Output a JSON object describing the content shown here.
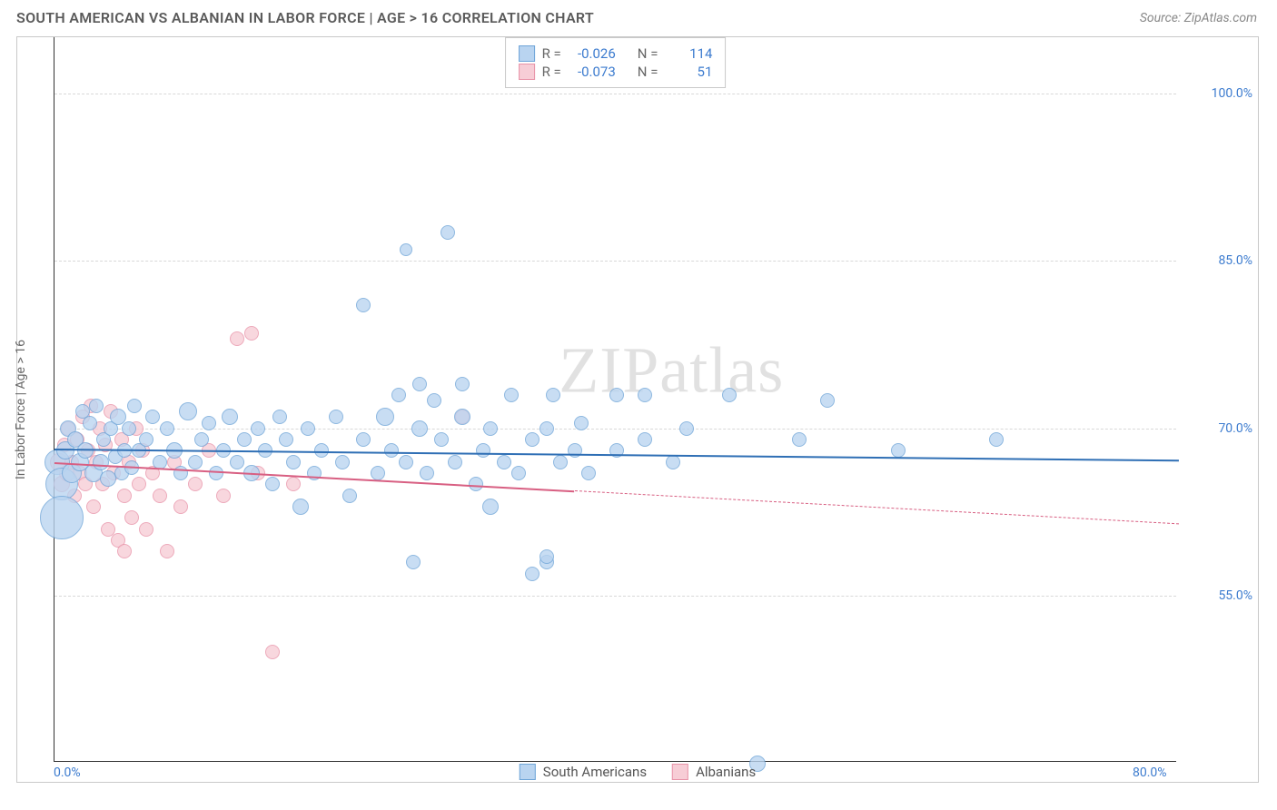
{
  "header": {
    "title": "SOUTH AMERICAN VS ALBANIAN IN LABOR FORCE | AGE > 16 CORRELATION CHART",
    "source": "Source: ZipAtlas.com"
  },
  "watermark": "ZIPatlas",
  "chart": {
    "type": "scatter",
    "ylabel": "In Labor Force | Age > 16",
    "background_color": "#ffffff",
    "grid_color": "#d8d8d8",
    "axis_color": "#333333",
    "tick_color": "#3d7ccf",
    "label_color": "#666666",
    "xlim": [
      0,
      80
    ],
    "ylim": [
      40,
      105
    ],
    "x_ticks": [
      {
        "v": 0,
        "label": "0.0%"
      },
      {
        "v": 80,
        "label": "80.0%"
      }
    ],
    "y_ticks": [
      {
        "v": 55,
        "label": "55.0%"
      },
      {
        "v": 70,
        "label": "70.0%"
      },
      {
        "v": 85,
        "label": "85.0%"
      },
      {
        "v": 100,
        "label": "100.0%"
      }
    ],
    "bubble_border_width": 1,
    "stats_box": {
      "border_color": "#c9c9c9",
      "rows": [
        {
          "r_label": "R =",
          "r_val": "-0.026",
          "n_label": "N =",
          "n_val": "114",
          "series": "blue"
        },
        {
          "r_label": "R =",
          "r_val": "-0.073",
          "n_label": "N =",
          "n_val": "51",
          "series": "pink"
        }
      ]
    },
    "series": {
      "blue": {
        "label": "South Americans",
        "fill": "#b9d4f0",
        "stroke": "#6fa5d8",
        "trend_color": "#2f6fb5",
        "trend": {
          "y_at_x0": 68.2,
          "y_at_x80": 67.2,
          "solid_until_x": 80
        },
        "points": [
          {
            "x": 0.2,
            "y": 67,
            "r": 14
          },
          {
            "x": 0.5,
            "y": 65,
            "r": 18
          },
          {
            "x": 0.5,
            "y": 62,
            "r": 24
          },
          {
            "x": 0.8,
            "y": 68,
            "r": 10
          },
          {
            "x": 1.0,
            "y": 70,
            "r": 9
          },
          {
            "x": 1.2,
            "y": 66,
            "r": 11
          },
          {
            "x": 1.5,
            "y": 69,
            "r": 9
          },
          {
            "x": 1.8,
            "y": 67,
            "r": 10
          },
          {
            "x": 2.0,
            "y": 71.5,
            "r": 8
          },
          {
            "x": 2.2,
            "y": 68,
            "r": 9
          },
          {
            "x": 2.5,
            "y": 70.5,
            "r": 8
          },
          {
            "x": 2.8,
            "y": 66,
            "r": 10
          },
          {
            "x": 3.0,
            "y": 72,
            "r": 8
          },
          {
            "x": 3.3,
            "y": 67,
            "r": 9
          },
          {
            "x": 3.5,
            "y": 69,
            "r": 8
          },
          {
            "x": 3.8,
            "y": 65.5,
            "r": 9
          },
          {
            "x": 4.0,
            "y": 70,
            "r": 8
          },
          {
            "x": 4.3,
            "y": 67.5,
            "r": 8
          },
          {
            "x": 4.5,
            "y": 71,
            "r": 9
          },
          {
            "x": 4.8,
            "y": 66,
            "r": 8
          },
          {
            "x": 5.0,
            "y": 68,
            "r": 8
          },
          {
            "x": 5.3,
            "y": 70,
            "r": 8
          },
          {
            "x": 5.5,
            "y": 66.5,
            "r": 8
          },
          {
            "x": 5.7,
            "y": 72,
            "r": 8
          },
          {
            "x": 6.0,
            "y": 68,
            "r": 8
          },
          {
            "x": 6.5,
            "y": 69,
            "r": 8
          },
          {
            "x": 7.0,
            "y": 71,
            "r": 8
          },
          {
            "x": 7.5,
            "y": 67,
            "r": 8
          },
          {
            "x": 8.0,
            "y": 70,
            "r": 8
          },
          {
            "x": 8.5,
            "y": 68,
            "r": 9
          },
          {
            "x": 9.0,
            "y": 66,
            "r": 8
          },
          {
            "x": 9.5,
            "y": 71.5,
            "r": 10
          },
          {
            "x": 10,
            "y": 67,
            "r": 8
          },
          {
            "x": 10.5,
            "y": 69,
            "r": 8
          },
          {
            "x": 11,
            "y": 70.5,
            "r": 8
          },
          {
            "x": 11.5,
            "y": 66,
            "r": 8
          },
          {
            "x": 12,
            "y": 68,
            "r": 8
          },
          {
            "x": 12.5,
            "y": 71,
            "r": 9
          },
          {
            "x": 13,
            "y": 67,
            "r": 8
          },
          {
            "x": 13.5,
            "y": 69,
            "r": 8
          },
          {
            "x": 14,
            "y": 66,
            "r": 9
          },
          {
            "x": 14.5,
            "y": 70,
            "r": 8
          },
          {
            "x": 15,
            "y": 68,
            "r": 8
          },
          {
            "x": 15.5,
            "y": 65,
            "r": 8
          },
          {
            "x": 16,
            "y": 71,
            "r": 8
          },
          {
            "x": 16.5,
            "y": 69,
            "r": 8
          },
          {
            "x": 17,
            "y": 67,
            "r": 8
          },
          {
            "x": 17.5,
            "y": 63,
            "r": 9
          },
          {
            "x": 18,
            "y": 70,
            "r": 8
          },
          {
            "x": 18.5,
            "y": 66,
            "r": 8
          },
          {
            "x": 19,
            "y": 68,
            "r": 8
          },
          {
            "x": 20,
            "y": 71,
            "r": 8
          },
          {
            "x": 20.5,
            "y": 67,
            "r": 8
          },
          {
            "x": 21,
            "y": 64,
            "r": 8
          },
          {
            "x": 22,
            "y": 69,
            "r": 8
          },
          {
            "x": 22,
            "y": 81,
            "r": 8
          },
          {
            "x": 23,
            "y": 66,
            "r": 8
          },
          {
            "x": 23.5,
            "y": 71,
            "r": 10
          },
          {
            "x": 24,
            "y": 68,
            "r": 8
          },
          {
            "x": 24.5,
            "y": 73,
            "r": 8
          },
          {
            "x": 25,
            "y": 86,
            "r": 7
          },
          {
            "x": 25,
            "y": 67,
            "r": 8
          },
          {
            "x": 25.5,
            "y": 58,
            "r": 8
          },
          {
            "x": 26,
            "y": 70,
            "r": 9
          },
          {
            "x": 26,
            "y": 74,
            "r": 8
          },
          {
            "x": 26.5,
            "y": 66,
            "r": 8
          },
          {
            "x": 27,
            "y": 72.5,
            "r": 8
          },
          {
            "x": 27.5,
            "y": 69,
            "r": 8
          },
          {
            "x": 28,
            "y": 87.5,
            "r": 8
          },
          {
            "x": 28.5,
            "y": 67,
            "r": 8
          },
          {
            "x": 29,
            "y": 71,
            "r": 9
          },
          {
            "x": 29,
            "y": 74,
            "r": 8
          },
          {
            "x": 30,
            "y": 65,
            "r": 8
          },
          {
            "x": 30.5,
            "y": 68,
            "r": 8
          },
          {
            "x": 31,
            "y": 70,
            "r": 8
          },
          {
            "x": 31,
            "y": 63,
            "r": 9
          },
          {
            "x": 32,
            "y": 67,
            "r": 8
          },
          {
            "x": 32.5,
            "y": 73,
            "r": 8
          },
          {
            "x": 33,
            "y": 66,
            "r": 8
          },
          {
            "x": 34,
            "y": 69,
            "r": 8
          },
          {
            "x": 34,
            "y": 57,
            "r": 8
          },
          {
            "x": 35,
            "y": 58,
            "r": 8
          },
          {
            "x": 35,
            "y": 70,
            "r": 8
          },
          {
            "x": 35,
            "y": 58.5,
            "r": 8
          },
          {
            "x": 35.5,
            "y": 73,
            "r": 8
          },
          {
            "x": 36,
            "y": 67,
            "r": 8
          },
          {
            "x": 37,
            "y": 68,
            "r": 8
          },
          {
            "x": 37.5,
            "y": 70.5,
            "r": 8
          },
          {
            "x": 38,
            "y": 66,
            "r": 8
          },
          {
            "x": 40,
            "y": 68,
            "r": 8
          },
          {
            "x": 40,
            "y": 73,
            "r": 8
          },
          {
            "x": 42,
            "y": 69,
            "r": 8
          },
          {
            "x": 42,
            "y": 73,
            "r": 8
          },
          {
            "x": 44,
            "y": 67,
            "r": 8
          },
          {
            "x": 45,
            "y": 70,
            "r": 8
          },
          {
            "x": 48,
            "y": 73,
            "r": 8
          },
          {
            "x": 50,
            "y": 40,
            "r": 9
          },
          {
            "x": 53,
            "y": 69,
            "r": 8
          },
          {
            "x": 55,
            "y": 72.5,
            "r": 8
          },
          {
            "x": 60,
            "y": 68,
            "r": 8
          },
          {
            "x": 67,
            "y": 69,
            "r": 8
          }
        ]
      },
      "pink": {
        "label": "Albanians",
        "fill": "#f7cdd6",
        "stroke": "#e893a8",
        "trend_color": "#d85f82",
        "trend": {
          "y_at_x0": 67.0,
          "y_at_x80": 61.5,
          "solid_until_x": 37
        },
        "points": [
          {
            "x": 0.3,
            "y": 67,
            "r": 10
          },
          {
            "x": 0.5,
            "y": 65,
            "r": 9
          },
          {
            "x": 0.7,
            "y": 68.5,
            "r": 8
          },
          {
            "x": 0.9,
            "y": 66,
            "r": 9
          },
          {
            "x": 1.0,
            "y": 70,
            "r": 8
          },
          {
            "x": 1.2,
            "y": 67,
            "r": 8
          },
          {
            "x": 1.4,
            "y": 64,
            "r": 8
          },
          {
            "x": 1.6,
            "y": 69,
            "r": 8
          },
          {
            "x": 1.8,
            "y": 66,
            "r": 8
          },
          {
            "x": 2.0,
            "y": 71,
            "r": 8
          },
          {
            "x": 2.2,
            "y": 65,
            "r": 8
          },
          {
            "x": 2.4,
            "y": 68,
            "r": 8
          },
          {
            "x": 2.6,
            "y": 72,
            "r": 8
          },
          {
            "x": 2.8,
            "y": 63,
            "r": 8
          },
          {
            "x": 3.0,
            "y": 67,
            "r": 8
          },
          {
            "x": 3.2,
            "y": 70,
            "r": 8
          },
          {
            "x": 3.4,
            "y": 65,
            "r": 8
          },
          {
            "x": 3.6,
            "y": 68.5,
            "r": 8
          },
          {
            "x": 3.8,
            "y": 61,
            "r": 8
          },
          {
            "x": 4.0,
            "y": 71.5,
            "r": 8
          },
          {
            "x": 4.2,
            "y": 66,
            "r": 8
          },
          {
            "x": 4.5,
            "y": 60,
            "r": 8
          },
          {
            "x": 4.8,
            "y": 69,
            "r": 8
          },
          {
            "x": 5.0,
            "y": 64,
            "r": 8
          },
          {
            "x": 5.0,
            "y": 59,
            "r": 8
          },
          {
            "x": 5.3,
            "y": 67,
            "r": 8
          },
          {
            "x": 5.5,
            "y": 62,
            "r": 8
          },
          {
            "x": 5.8,
            "y": 70,
            "r": 8
          },
          {
            "x": 6.0,
            "y": 65,
            "r": 8
          },
          {
            "x": 6.3,
            "y": 68,
            "r": 8
          },
          {
            "x": 6.5,
            "y": 61,
            "r": 8
          },
          {
            "x": 7.0,
            "y": 66,
            "r": 8
          },
          {
            "x": 7.5,
            "y": 64,
            "r": 8
          },
          {
            "x": 8.0,
            "y": 59,
            "r": 8
          },
          {
            "x": 8.5,
            "y": 67,
            "r": 8
          },
          {
            "x": 9.0,
            "y": 63,
            "r": 8
          },
          {
            "x": 10,
            "y": 65,
            "r": 8
          },
          {
            "x": 11,
            "y": 68,
            "r": 8
          },
          {
            "x": 12,
            "y": 64,
            "r": 8
          },
          {
            "x": 13,
            "y": 78,
            "r": 8
          },
          {
            "x": 14,
            "y": 78.5,
            "r": 8
          },
          {
            "x": 14.5,
            "y": 66,
            "r": 8
          },
          {
            "x": 15.5,
            "y": 50,
            "r": 8
          },
          {
            "x": 17,
            "y": 65,
            "r": 8
          },
          {
            "x": 29,
            "y": 71,
            "r": 8
          }
        ]
      }
    },
    "bottom_legend": [
      {
        "series": "blue"
      },
      {
        "series": "pink"
      }
    ]
  }
}
